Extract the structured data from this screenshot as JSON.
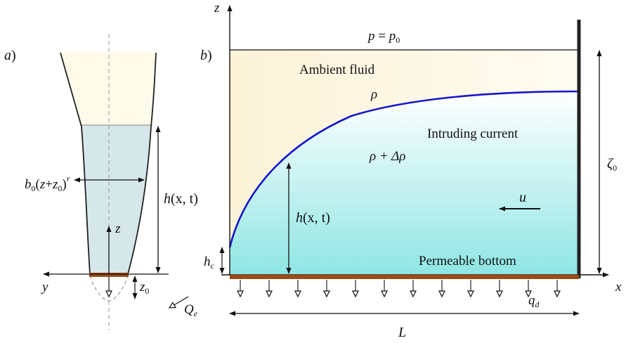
{
  "panel_a": {
    "label": "a",
    "label_paren": ")",
    "width_label": {
      "b": "b",
      "b_sub": "0",
      "open": "(",
      "z": "z",
      "plus": "+",
      "z0": "z",
      "z0_sub": "0",
      "close": ")",
      "exp": "r"
    },
    "height_label": {
      "h": "h",
      "args": "(x, t)"
    },
    "z_axis_label": "z",
    "y_axis_label": "y",
    "z0_label": {
      "z": "z",
      "sub": "0"
    },
    "outflow_label": {
      "Q": "Q",
      "sub": "e"
    }
  },
  "panel_b": {
    "label": "b",
    "label_paren": ")",
    "z_axis_label": "z",
    "x_axis_label": "x",
    "pressure_label": {
      "p": "p",
      "eq": " = ",
      "p0": "p",
      "p0_sub": "0"
    },
    "ambient_label": "Ambient fluid",
    "rho_label": "ρ",
    "current_label": "Intruding current",
    "rho_drho_label": "ρ + Δρ",
    "height_label": {
      "h": "h",
      "args": "(x, t)"
    },
    "velocity_label": "u",
    "hc_label": {
      "h": "h",
      "sub": "c"
    },
    "bottom_label": "Permeable bottom",
    "zeta_label": {
      "zeta": "ζ",
      "sub": "0"
    },
    "qd_label": {
      "q": "q",
      "sub": "d"
    },
    "length_label": "L"
  },
  "colors": {
    "ambient_fill": "#fdf9e6",
    "current_top": "#ffffff",
    "current_bottom": "#8fe6e4",
    "panel_a_fluid": "#d6e7ea",
    "interface": "#1515cc",
    "bottom": "#9c4a16",
    "wall": "#222222"
  }
}
